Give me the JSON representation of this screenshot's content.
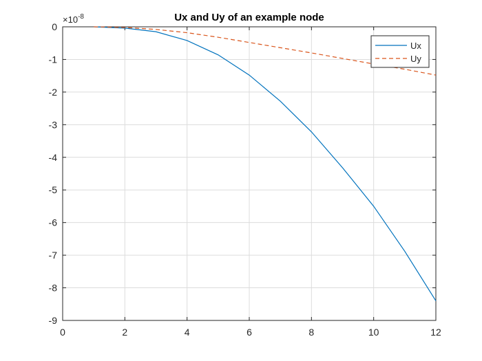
{
  "chart_data": {
    "type": "line",
    "title": "Ux and Uy of an example node",
    "xlabel": "",
    "ylabel": "",
    "xlim": [
      0,
      12
    ],
    "ylim": [
      -9,
      0
    ],
    "xticks": [
      0,
      2,
      4,
      6,
      8,
      10,
      12
    ],
    "yticks": [
      0,
      -1,
      -2,
      -3,
      -4,
      -5,
      -6,
      -7,
      -8,
      -9
    ],
    "y_exponent_base": "×10",
    "y_exponent_power": "-8",
    "grid": true,
    "legend_position": "top-right",
    "x": [
      1,
      2,
      3,
      4,
      5,
      6,
      7,
      8,
      9,
      10,
      11,
      12
    ],
    "series": [
      {
        "name": "Ux",
        "color": "#0072BD",
        "line_style": "solid",
        "values": [
          0,
          -0.04,
          -0.15,
          -0.42,
          -0.86,
          -1.48,
          -2.28,
          -3.22,
          -4.32,
          -5.5,
          -6.88,
          -8.4
        ]
      },
      {
        "name": "Uy",
        "color": "#D95319",
        "line_style": "dashed",
        "values": [
          0,
          -0.02,
          -0.08,
          -0.18,
          -0.32,
          -0.48,
          -0.64,
          -0.8,
          -0.97,
          -1.14,
          -1.3,
          -1.48
        ]
      }
    ]
  }
}
